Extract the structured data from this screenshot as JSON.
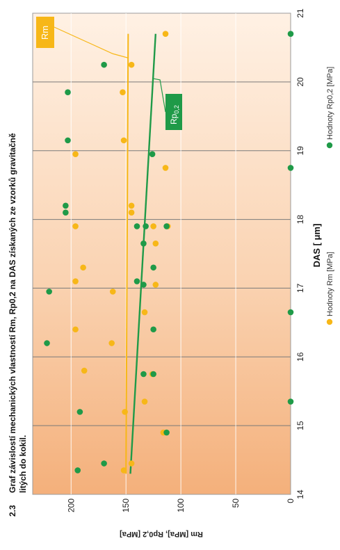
{
  "chart_data": {
    "type": "scatter",
    "orientation": "rotated-90-ccw",
    "title_number": "2.3",
    "title": "Graf závislostí mechanických vlastností Rm, Rp0,2 na DAS získaných ze vzorků gravitačně litých do kokil.",
    "xlabel": "DAS [ μm]",
    "ylabel": "Rm [MPa], Rp0,2 [MPa]",
    "xlim": [
      14,
      21
    ],
    "ylim": [
      0,
      235
    ],
    "x_ticks": [
      14,
      15,
      16,
      17,
      18,
      19,
      20,
      21
    ],
    "y_ticks": [
      0,
      50,
      100,
      150,
      200
    ],
    "grid": true,
    "legend_position": "bottom",
    "series": [
      {
        "name": "Hodnoty Rm [MPa]",
        "color": "#f7b718",
        "marker": "circle",
        "points": [
          [
            14.35,
            152
          ],
          [
            14.45,
            145
          ],
          [
            14.9,
            116
          ],
          [
            15.2,
            151
          ],
          [
            15.35,
            133
          ],
          [
            15.75,
            126
          ],
          [
            15.8,
            188
          ],
          [
            16.2,
            163
          ],
          [
            16.4,
            196
          ],
          [
            16.65,
            133
          ],
          [
            16.95,
            162
          ],
          [
            17.05,
            123
          ],
          [
            17.1,
            196
          ],
          [
            17.3,
            189
          ],
          [
            17.65,
            123
          ],
          [
            17.9,
            196
          ],
          [
            17.9,
            125
          ],
          [
            17.9,
            112
          ],
          [
            18.1,
            145
          ],
          [
            18.2,
            145
          ],
          [
            18.75,
            114
          ],
          [
            18.95,
            196
          ],
          [
            19.15,
            152
          ],
          [
            19.85,
            153
          ],
          [
            20.25,
            145
          ],
          [
            20.7,
            114
          ]
        ]
      },
      {
        "name": "Hodnoty Rp0,2 [MPa]",
        "color": "#1f9a48",
        "marker": "circle",
        "points": [
          [
            14.35,
            194
          ],
          [
            14.45,
            170
          ],
          [
            14.9,
            113
          ],
          [
            15.2,
            192
          ],
          [
            15.35,
            0
          ],
          [
            15.75,
            134
          ],
          [
            15.75,
            125
          ],
          [
            16.2,
            222
          ],
          [
            16.4,
            125
          ],
          [
            16.65,
            0
          ],
          [
            16.95,
            220
          ],
          [
            17.05,
            134
          ],
          [
            17.1,
            140
          ],
          [
            17.3,
            125
          ],
          [
            17.65,
            134
          ],
          [
            17.9,
            140
          ],
          [
            17.9,
            132
          ],
          [
            17.9,
            113
          ],
          [
            18.1,
            205
          ],
          [
            18.2,
            205
          ],
          [
            18.75,
            0
          ],
          [
            18.95,
            126
          ],
          [
            19.15,
            203
          ],
          [
            19.85,
            203
          ],
          [
            20.25,
            170
          ],
          [
            20.7,
            0
          ]
        ]
      }
    ],
    "trendlines": [
      {
        "label": "Rm",
        "color": "#f7b718",
        "label_fill": "#f7b718",
        "x": [
          14.3,
          20.7
        ],
        "y": [
          150,
          148
        ]
      },
      {
        "label": "Rp0,2",
        "label_main": "Rp",
        "label_sub": "0,2",
        "color": "#1f9a48",
        "label_fill": "#1f9a48",
        "x": [
          14.3,
          20.7
        ],
        "y": [
          146,
          123
        ]
      }
    ]
  }
}
